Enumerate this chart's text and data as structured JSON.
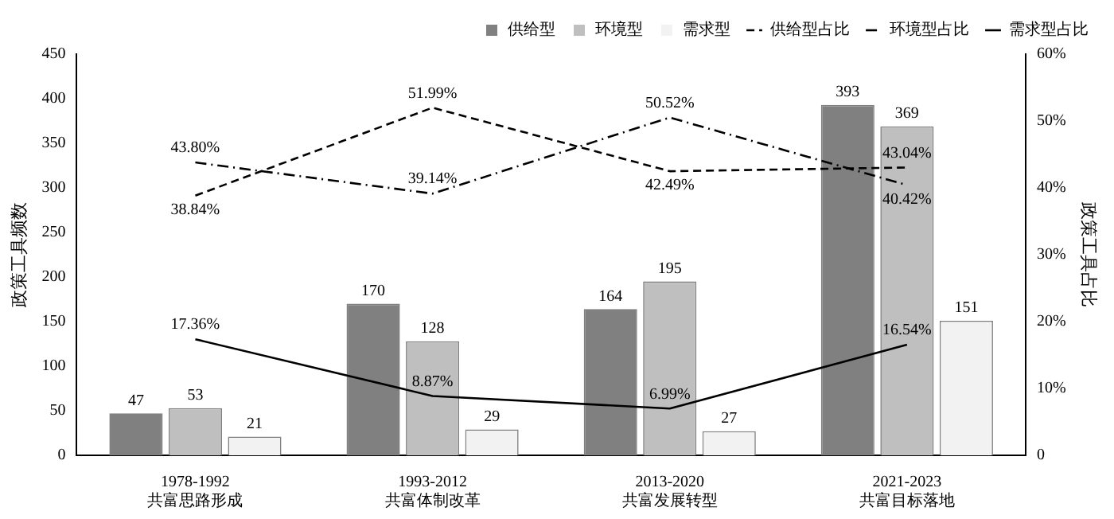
{
  "chart_data": {
    "type": "bar",
    "ylabel": "政策工具频数",
    "y2label": "政策工具占比",
    "categories": [
      "1978-1992\n共富思路形成",
      "1993-2012\n共富体制改革",
      "2013-2020\n共富发展转型",
      "2021-2023\n共富目标落地"
    ],
    "series": [
      {
        "name": "供给型",
        "color": "#808080",
        "values": [
          47,
          170,
          164,
          393
        ]
      },
      {
        "name": "环境型",
        "color": "#bfbfbf",
        "values": [
          53,
          128,
          195,
          369
        ]
      },
      {
        "name": "需求型",
        "color": "#f2f2f2",
        "values": [
          21,
          29,
          27,
          151
        ]
      },
      {
        "name": "供给型占比",
        "type": "line",
        "axis": "y2",
        "color": "#000000",
        "line_style": "dashed",
        "values": [
          38.84,
          51.99,
          42.49,
          43.04
        ],
        "value_labels": [
          "38.84%",
          "51.99%",
          "42.49%",
          "43.04%"
        ]
      },
      {
        "name": "环境型占比",
        "type": "line",
        "axis": "y2",
        "color": "#000000",
        "line_style": "dashdot",
        "values": [
          43.8,
          39.14,
          50.52,
          40.42
        ],
        "value_labels": [
          "43.80%",
          "39.14%",
          "50.52%",
          "40.42%"
        ]
      },
      {
        "name": "需求型占比",
        "type": "line",
        "axis": "y2",
        "color": "#000000",
        "line_style": "solid",
        "values": [
          17.36,
          8.87,
          6.99,
          16.54
        ],
        "value_labels": [
          "17.36%",
          "8.87%",
          "6.99%",
          "16.54%"
        ]
      }
    ],
    "ylim": [
      0,
      450
    ],
    "yticks": [
      0,
      50,
      100,
      150,
      200,
      250,
      300,
      350,
      400,
      450
    ],
    "y2lim": [
      0,
      60
    ],
    "y2ticks": [
      {
        "value": 0,
        "label": "0"
      },
      {
        "value": 10,
        "label": "10%"
      },
      {
        "value": 20,
        "label": "20%"
      },
      {
        "value": 30,
        "label": "30%"
      },
      {
        "value": 40,
        "label": "40%"
      },
      {
        "value": 50,
        "label": "50%"
      },
      {
        "value": 60,
        "label": "60%"
      }
    ],
    "data_labels": true,
    "grid": false,
    "legend": "top",
    "marker": "none"
  }
}
